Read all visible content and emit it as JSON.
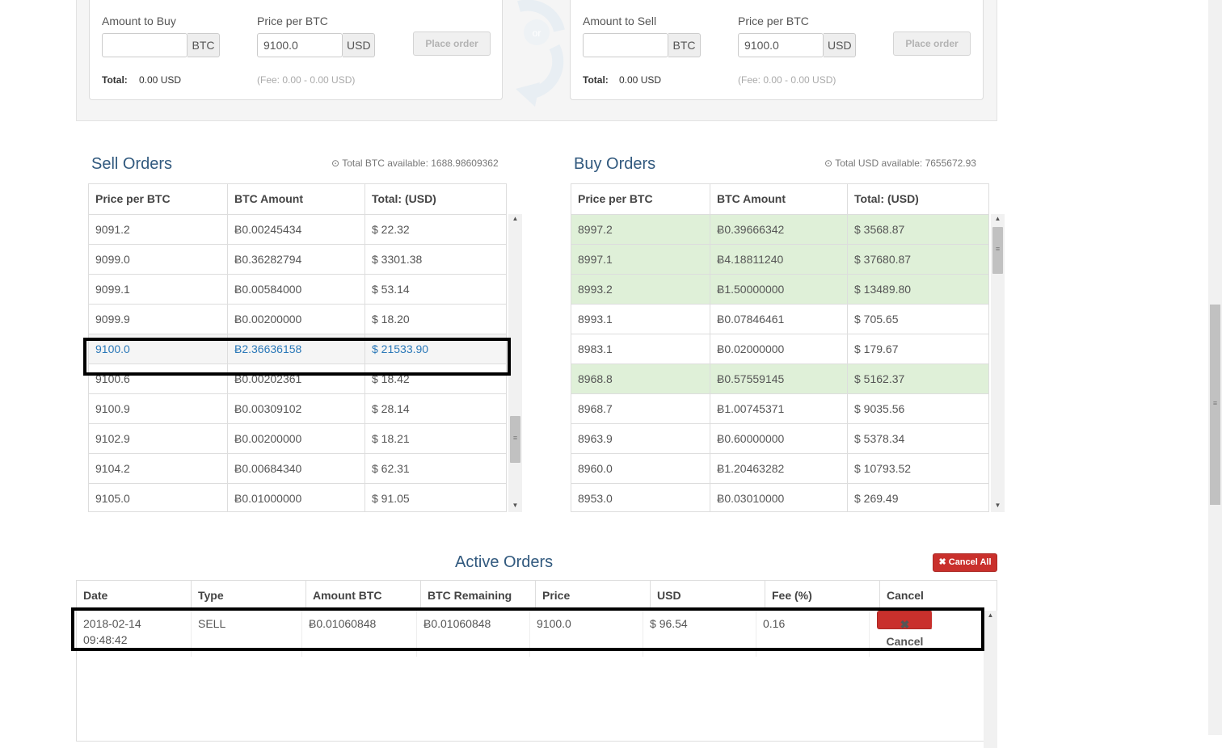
{
  "buy_form": {
    "amount_label": "Amount to Buy",
    "amount_value": "",
    "amount_unit": "BTC",
    "price_label": "Price per BTC",
    "price_value": "9100.0",
    "price_unit": "USD",
    "button": "Place order",
    "total_label": "Total:",
    "total_value": "0.00 USD",
    "fee_text": "(Fee: 0.00 - 0.00 USD)"
  },
  "swap_label": "or",
  "sell_form": {
    "amount_label": "Amount to Sell",
    "amount_value": "",
    "amount_unit": "BTC",
    "price_label": "Price per BTC",
    "price_value": "9100.0",
    "price_unit": "USD",
    "button": "Place order",
    "total_label": "Total:",
    "total_value": "0.00 USD",
    "fee_text": "(Fee: 0.00 - 0.00 USD)"
  },
  "sell_orders": {
    "title": "Sell Orders",
    "available": "Total BTC available: 1688.98609362",
    "columns": [
      "Price per BTC",
      "BTC Amount",
      "Total: (USD)"
    ],
    "rows": [
      {
        "price": "9091.2",
        "amount": "0.00245434",
        "total": "22.32"
      },
      {
        "price": "9099.0",
        "amount": "0.36282794",
        "total": "3301.38"
      },
      {
        "price": "9099.1",
        "amount": "0.00584000",
        "total": "53.14"
      },
      {
        "price": "9099.9",
        "amount": "0.00200000",
        "total": "18.20"
      },
      {
        "price": "9100.0",
        "amount": "2.36636158",
        "total": "21533.90"
      },
      {
        "price": "9100.6",
        "amount": "0.00202361",
        "total": "18.42"
      },
      {
        "price": "9100.9",
        "amount": "0.00309102",
        "total": "28.14"
      },
      {
        "price": "9102.9",
        "amount": "0.00200000",
        "total": "18.21"
      },
      {
        "price": "9104.2",
        "amount": "0.00684340",
        "total": "62.31"
      },
      {
        "price": "9105.0",
        "amount": "0.01000000",
        "total": "91.05"
      }
    ],
    "selected_row": 4
  },
  "buy_orders": {
    "title": "Buy Orders",
    "available": "Total USD available: 7655672.93",
    "columns": [
      "Price per BTC",
      "BTC Amount",
      "Total: (USD)"
    ],
    "rows": [
      {
        "price": "8997.2",
        "amount": "0.39666342",
        "total": "3568.87",
        "own": true
      },
      {
        "price": "8997.1",
        "amount": "4.18811240",
        "total": "37680.87",
        "own": true
      },
      {
        "price": "8993.2",
        "amount": "1.50000000",
        "total": "13489.80",
        "own": true
      },
      {
        "price": "8993.1",
        "amount": "0.07846461",
        "total": "705.65",
        "own": false
      },
      {
        "price": "8983.1",
        "amount": "0.02000000",
        "total": "179.67",
        "own": false
      },
      {
        "price": "8968.8",
        "amount": "0.57559145",
        "total": "5162.37",
        "own": true
      },
      {
        "price": "8968.7",
        "amount": "1.00745371",
        "total": "9035.56",
        "own": false
      },
      {
        "price": "8963.9",
        "amount": "0.60000000",
        "total": "5378.34",
        "own": false
      },
      {
        "price": "8960.0",
        "amount": "1.20463282",
        "total": "10793.52",
        "own": false
      },
      {
        "price": "8953.0",
        "amount": "0.03010000",
        "total": "269.49",
        "own": false
      }
    ],
    "highlight_color": "#dff0d8"
  },
  "currency_symbols": {
    "btc": "Ƀ",
    "usd": "$"
  },
  "active_orders": {
    "title": "Active Orders",
    "cancel_all": "Cancel All",
    "columns": [
      "Date",
      "Type",
      "Amount BTC",
      "BTC Remaining",
      "Price",
      "USD",
      "Fee (%)",
      "Cancel"
    ],
    "rows": [
      {
        "date": "2018-02-14",
        "time": "09:48:42",
        "type": "SELL",
        "amount": "0.01060848",
        "remaining": "0.01060848",
        "price": "9100.0",
        "usd": "96.54",
        "fee": "0.16",
        "cancel": "Cancel"
      }
    ]
  },
  "colors": {
    "title": "#31597e",
    "danger": "#c9302c",
    "link": "#2a78b8"
  }
}
